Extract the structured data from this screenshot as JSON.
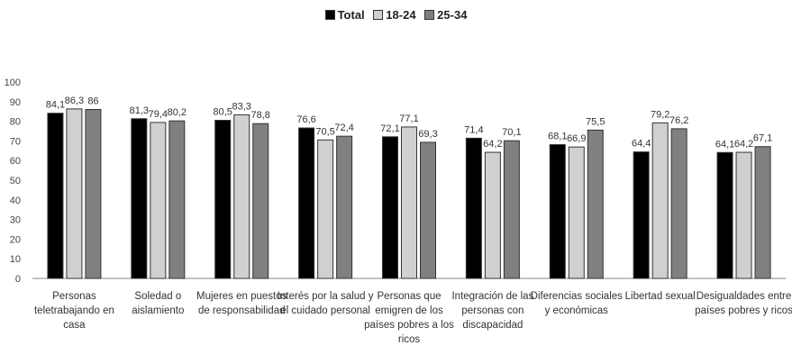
{
  "chart_data": {
    "type": "bar",
    "title": "",
    "xlabel": "",
    "ylabel": "",
    "ylim": [
      0,
      100
    ],
    "yticks": [
      0,
      10,
      20,
      30,
      40,
      50,
      60,
      70,
      80,
      90,
      100
    ],
    "grid": false,
    "legend_position": "top-center",
    "categories": [
      [
        "Personas",
        "teletrabajando en",
        "casa"
      ],
      [
        "Soledad o",
        "aislamiento"
      ],
      [
        "Mujeres en puestos",
        "de responsabilidad"
      ],
      [
        "Interés por la salud y",
        "el cuidado personal"
      ],
      [
        "Personas que",
        "emigren de los",
        "países pobres a los",
        "ricos"
      ],
      [
        "Integración de las",
        "personas con",
        "discapacidad"
      ],
      [
        "Diferencias sociales",
        "y económicas"
      ],
      [
        "Libertad sexual"
      ],
      [
        "Desigualdades entre",
        "países pobres y ricos"
      ]
    ],
    "series": [
      {
        "name": "Total",
        "color": "#000000",
        "values": [
          84.1,
          81.3,
          80.5,
          76.6,
          72.1,
          71.4,
          68.1,
          64.4,
          64.1
        ],
        "labels": [
          "84,1",
          "81,3",
          "80,5",
          "76,6",
          "72,1",
          "71,4",
          "68,1",
          "64,4",
          "64,1"
        ]
      },
      {
        "name": "18-24",
        "color": "#d0d0d0",
        "values": [
          86.3,
          79.4,
          83.3,
          70.5,
          77.1,
          64.2,
          66.9,
          79.2,
          64.2
        ],
        "labels": [
          "86,3",
          "79,4",
          "83,3",
          "70,5",
          "77,1",
          "64,2",
          "66,9",
          "79,2",
          "64,2"
        ]
      },
      {
        "name": "25-34",
        "color": "#808080",
        "values": [
          86,
          80.2,
          78.8,
          72.4,
          69.3,
          70.1,
          75.5,
          76.2,
          67.1
        ],
        "labels": [
          "86",
          "80,2",
          "78,8",
          "72,4",
          "69,3",
          "70,1",
          "75,5",
          "76,2",
          "67,1"
        ]
      }
    ]
  }
}
